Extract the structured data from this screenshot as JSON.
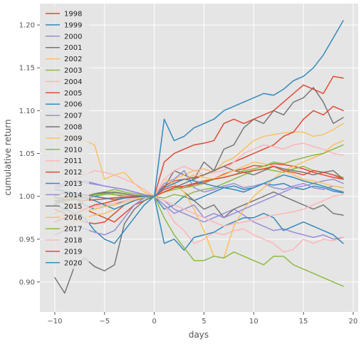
{
  "chart_data": {
    "type": "line",
    "title": "",
    "xlabel": "days",
    "ylabel": "cumulative return",
    "xlim": [
      -11.5,
      20.5
    ],
    "ylim": [
      0.865,
      1.225
    ],
    "xticks": [
      -10,
      -5,
      0,
      5,
      10,
      15,
      20
    ],
    "yticks": [
      0.9,
      0.95,
      1.0,
      1.05,
      1.1,
      1.15,
      1.2
    ],
    "xtick_labels": [
      "−10",
      "−5",
      "0",
      "5",
      "10",
      "15",
      "20"
    ],
    "ytick_labels": [
      "0.90",
      "0.95",
      "1.00",
      "1.05",
      "1.10",
      "1.15",
      "1.20"
    ],
    "grid": true,
    "legend_position": "top-left",
    "x": [
      -10,
      -9,
      -8,
      -7,
      -6,
      -5,
      -4,
      -3,
      -2,
      -1,
      0,
      1,
      2,
      3,
      4,
      5,
      6,
      7,
      8,
      9,
      10,
      11,
      12,
      13,
      14,
      15,
      16,
      17,
      18,
      19
    ],
    "series": [
      {
        "name": "1998",
        "color": "#E24A33",
        "values": [
          0.995,
          0.992,
          0.988,
          0.985,
          0.98,
          0.975,
          0.97,
          0.98,
          0.99,
          0.995,
          1.0,
          1.008,
          1.012,
          1.01,
          1.014,
          1.016,
          1.02,
          1.026,
          1.03,
          1.032,
          1.036,
          1.035,
          1.038,
          1.037,
          1.035,
          1.032,
          1.028,
          1.025,
          1.022,
          1.02
        ]
      },
      {
        "name": "1999",
        "color": "#348ABD",
        "values": [
          0.992,
          0.996,
          0.998,
          0.99,
          0.985,
          0.988,
          0.99,
          0.995,
          0.998,
          0.999,
          1.0,
          0.985,
          0.99,
          1.0,
          0.995,
          1.0,
          1.005,
          1.01,
          1.012,
          1.008,
          1.01,
          1.015,
          1.013,
          1.015,
          1.01,
          1.008,
          1.012,
          1.01,
          1.006,
          1.004
        ]
      },
      {
        "name": "2000",
        "color": "#988ED5",
        "values": [
          1.01,
          1.012,
          1.015,
          1.018,
          1.015,
          1.012,
          1.01,
          1.008,
          1.005,
          1.002,
          1.0,
          0.995,
          0.985,
          0.98,
          0.975,
          0.97,
          0.975,
          0.98,
          0.985,
          0.978,
          0.97,
          0.965,
          0.96,
          0.962,
          0.958,
          0.955,
          0.952,
          0.955,
          0.95,
          0.952
        ]
      },
      {
        "name": "2001",
        "color": "#777777",
        "values": [
          0.905,
          0.887,
          0.919,
          0.928,
          0.918,
          0.913,
          0.92,
          0.968,
          0.985,
          0.995,
          1.0,
          1.01,
          1.03,
          1.025,
          1.02,
          1.04,
          1.03,
          1.055,
          1.06,
          1.08,
          1.09,
          1.085,
          1.1,
          1.095,
          1.11,
          1.115,
          1.127,
          1.11,
          1.085,
          1.092
        ]
      },
      {
        "name": "2002",
        "color": "#FBC15E",
        "values": [
          1.075,
          1.07,
          1.068,
          1.065,
          1.06,
          1.02,
          1.025,
          1.028,
          1.015,
          1.005,
          1.0,
          1.015,
          1.02,
          1.025,
          1.03,
          1.032,
          1.028,
          1.04,
          1.045,
          1.055,
          1.065,
          1.07,
          1.072,
          1.074,
          1.075,
          1.075,
          1.07,
          1.072,
          1.078,
          1.085
        ]
      },
      {
        "name": "2003",
        "color": "#8EBA42",
        "values": [
          0.98,
          0.985,
          0.99,
          0.995,
          1.0,
          1.005,
          1.008,
          1.005,
          1.003,
          1.001,
          1.0,
          0.998,
          1.002,
          1.0,
          1.005,
          1.008,
          1.01,
          1.015,
          1.02,
          1.025,
          1.03,
          1.032,
          1.03,
          1.028,
          1.032,
          1.035,
          1.03,
          1.028,
          1.025,
          1.022
        ]
      },
      {
        "name": "2004",
        "color": "#FFB5B8",
        "values": [
          0.985,
          0.982,
          0.99,
          0.985,
          0.988,
          0.99,
          0.992,
          0.995,
          0.998,
          0.999,
          1.0,
          0.99,
          0.97,
          0.96,
          0.945,
          0.95,
          0.958,
          0.955,
          0.96,
          0.962,
          0.955,
          0.95,
          0.945,
          0.935,
          0.938,
          0.95,
          0.945,
          0.95,
          0.948,
          0.952
        ]
      },
      {
        "name": "2005",
        "color": "#E24A33",
        "values": [
          0.985,
          0.98,
          0.975,
          0.97,
          0.968,
          0.97,
          0.98,
          0.99,
          0.995,
          0.998,
          1.0,
          1.012,
          1.018,
          1.02,
          1.022,
          1.025,
          1.03,
          1.035,
          1.04,
          1.045,
          1.05,
          1.055,
          1.06,
          1.07,
          1.075,
          1.09,
          1.1,
          1.095,
          1.105,
          1.1
        ]
      },
      {
        "name": "2006",
        "color": "#348ABD",
        "values": [
          0.99,
          0.985,
          0.98,
          0.975,
          0.96,
          0.95,
          0.945,
          0.96,
          0.975,
          0.99,
          1.0,
          0.945,
          0.95,
          0.937,
          0.952,
          0.955,
          0.958,
          0.965,
          0.97,
          0.975,
          0.975,
          0.98,
          0.975,
          0.96,
          0.965,
          0.97,
          0.965,
          0.96,
          0.955,
          0.945
        ]
      },
      {
        "name": "2007",
        "color": "#988ED5",
        "values": [
          0.955,
          0.96,
          0.965,
          0.962,
          0.958,
          0.955,
          0.96,
          0.975,
          0.99,
          0.998,
          1.0,
          1.015,
          1.02,
          1.03,
          1.01,
          1.005,
          1.008,
          1.012,
          1.015,
          1.01,
          1.012,
          1.015,
          1.01,
          1.008,
          1.012,
          1.015,
          1.01,
          1.008,
          1.012,
          1.01
        ]
      },
      {
        "name": "2008",
        "color": "#777777",
        "values": [
          0.99,
          0.995,
          0.998,
          1.0,
          1.003,
          1.005,
          1.002,
          1.0,
          0.999,
          1.0,
          1.0,
          1.01,
          1.015,
          1.005,
          0.995,
          0.985,
          0.99,
          0.975,
          0.985,
          0.99,
          0.995,
          1.0,
          1.005,
          1.0,
          0.995,
          0.99,
          0.985,
          0.99,
          0.98,
          0.978
        ]
      },
      {
        "name": "2009",
        "color": "#FBC15E",
        "values": [
          0.96,
          0.965,
          0.97,
          0.975,
          0.978,
          0.98,
          0.985,
          0.99,
          0.995,
          0.999,
          1.0,
          1.02,
          1.015,
          1.005,
          0.985,
          0.96,
          0.93,
          0.928,
          0.965,
          0.985,
          1.0,
          1.01,
          1.02,
          1.03,
          1.035,
          1.04,
          1.045,
          1.05,
          1.06,
          1.065
        ]
      },
      {
        "name": "2010",
        "color": "#8EBA42",
        "values": [
          0.992,
          0.994,
          0.996,
          0.998,
          1.0,
          1.002,
          1.004,
          1.003,
          1.001,
          1.0,
          1.0,
          0.975,
          0.955,
          0.94,
          0.925,
          0.925,
          0.93,
          0.928,
          0.935,
          0.93,
          0.925,
          0.92,
          0.93,
          0.93,
          0.92,
          0.915,
          0.91,
          0.905,
          0.9,
          0.895
        ]
      },
      {
        "name": "2011",
        "color": "#FFB5B8",
        "values": [
          1.01,
          1.015,
          1.02,
          1.025,
          1.03,
          1.028,
          1.025,
          1.02,
          1.015,
          1.008,
          1.0,
          1.02,
          1.03,
          1.035,
          1.03,
          1.025,
          1.028,
          1.03,
          1.04,
          1.05,
          1.055,
          1.06,
          1.058,
          1.055,
          1.06,
          1.062,
          1.058,
          1.055,
          1.05,
          1.048
        ]
      },
      {
        "name": "2012",
        "color": "#E24A33",
        "values": [
          0.97,
          0.975,
          0.98,
          0.985,
          0.99,
          0.992,
          0.995,
          0.998,
          1.0,
          1.0,
          1.0,
          1.04,
          1.05,
          1.055,
          1.06,
          1.062,
          1.065,
          1.085,
          1.09,
          1.085,
          1.09,
          1.095,
          1.1,
          1.11,
          1.12,
          1.13,
          1.125,
          1.12,
          1.14,
          1.138
        ]
      },
      {
        "name": "2013",
        "color": "#348ABD",
        "values": [
          1.0,
          1.005,
          1.002,
          0.998,
          0.995,
          0.99,
          0.985,
          0.99,
          0.995,
          0.999,
          1.0,
          1.09,
          1.065,
          1.07,
          1.08,
          1.085,
          1.09,
          1.1,
          1.105,
          1.11,
          1.115,
          1.12,
          1.118,
          1.125,
          1.135,
          1.14,
          1.15,
          1.165,
          1.185,
          1.205
        ]
      },
      {
        "name": "2014",
        "color": "#988ED5",
        "values": [
          1.012,
          1.015,
          1.018,
          1.016,
          1.014,
          1.012,
          1.01,
          1.008,
          1.005,
          1.002,
          1.0,
          0.99,
          0.98,
          0.985,
          0.99,
          0.975,
          0.98,
          0.975,
          0.98,
          0.985,
          0.99,
          0.995,
          1.0,
          1.005,
          1.01,
          1.012,
          1.015,
          1.018,
          1.02,
          1.015
        ]
      },
      {
        "name": "2015",
        "color": "#777777",
        "values": [
          0.995,
          0.996,
          0.998,
          1.0,
          1.002,
          1.004,
          1.005,
          1.003,
          1.001,
          1.0,
          1.0,
          1.005,
          1.01,
          1.015,
          1.02,
          1.025,
          1.03,
          1.035,
          1.03,
          1.028,
          1.025,
          1.03,
          1.035,
          1.032,
          1.03,
          1.028,
          1.025,
          1.028,
          1.03,
          1.02
        ]
      },
      {
        "name": "2016",
        "color": "#FBC15E",
        "values": [
          0.975,
          0.978,
          0.98,
          0.983,
          0.985,
          0.988,
          0.99,
          0.993,
          0.996,
          0.999,
          1.0,
          1.01,
          1.015,
          1.02,
          1.025,
          1.022,
          1.02,
          1.025,
          1.03,
          1.035,
          1.04,
          1.038,
          1.035,
          1.03,
          1.025,
          1.02,
          1.018,
          1.015,
          1.012,
          1.01
        ]
      },
      {
        "name": "2017",
        "color": "#8EBA42",
        "values": [
          0.998,
          0.999,
          1.0,
          1.001,
          1.002,
          1.003,
          1.002,
          1.001,
          1.0,
          1.0,
          1.0,
          1.005,
          1.008,
          1.01,
          1.012,
          1.015,
          1.02,
          1.022,
          1.025,
          1.03,
          1.032,
          1.035,
          1.04,
          1.038,
          1.042,
          1.045,
          1.048,
          1.05,
          1.055,
          1.06
        ]
      },
      {
        "name": "2018",
        "color": "#FFB5B8",
        "values": [
          1.003,
          1.002,
          1.001,
          1.0,
          0.999,
          0.998,
          0.999,
          1.0,
          1.0,
          1.0,
          1.0,
          0.995,
          0.99,
          0.985,
          0.98,
          0.975,
          0.97,
          0.965,
          0.968,
          0.97,
          0.972,
          0.975,
          0.978,
          0.98,
          0.982,
          0.985,
          0.99,
          0.995,
          1.0,
          1.002
        ]
      },
      {
        "name": "2019",
        "color": "#E24A33",
        "values": [
          0.998,
          0.997,
          0.996,
          0.995,
          0.996,
          0.997,
          0.998,
          0.999,
          1.0,
          1.0,
          1.0,
          1.005,
          1.01,
          1.012,
          1.015,
          1.018,
          1.02,
          1.022,
          1.025,
          1.028,
          1.03,
          1.032,
          1.035,
          1.03,
          1.028,
          1.025,
          1.03,
          1.028,
          1.025,
          1.02
        ]
      },
      {
        "name": "2020",
        "color": "#348ABD",
        "values": [
          1.008,
          1.006,
          1.004,
          1.002,
          1.0,
          0.998,
          0.996,
          0.998,
          0.999,
          1.0,
          1.0,
          1.01,
          1.015,
          1.02,
          1.018,
          1.015,
          1.012,
          1.01,
          1.008,
          1.005,
          1.01,
          1.015,
          1.02,
          1.025,
          1.022,
          1.018,
          1.015,
          1.012,
          1.008,
          1.005
        ]
      }
    ]
  }
}
